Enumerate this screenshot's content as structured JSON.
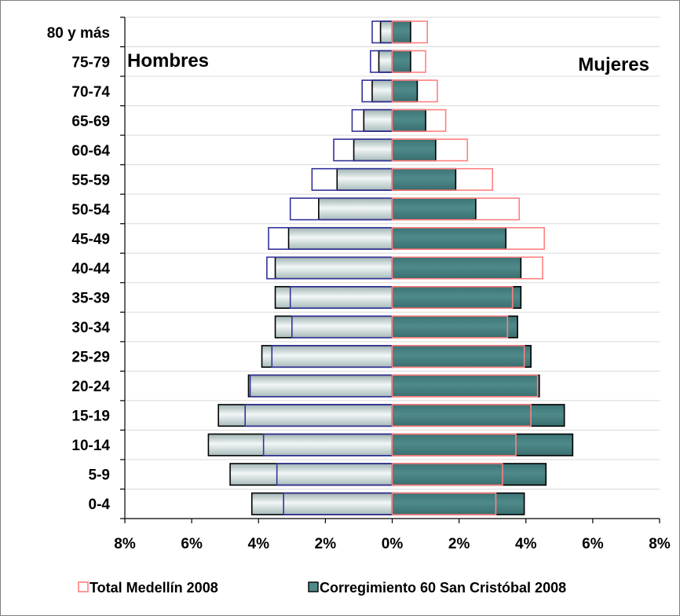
{
  "chart_data": {
    "type": "bar",
    "orientation": "horizontal",
    "layout": "population-pyramid",
    "categories": [
      "0-4",
      "5-9",
      "10-14",
      "15-19",
      "20-24",
      "25-29",
      "30-34",
      "35-39",
      "40-44",
      "45-49",
      "50-54",
      "55-59",
      "60-64",
      "65-69",
      "70-74",
      "75-79",
      "80 y más"
    ],
    "series": [
      {
        "name": "Corregimiento 60 San Cristóbal 2008",
        "style": "filled",
        "color_men": "#c8d6d6",
        "color_women": "#4f8a8b",
        "edge_color": "#000000",
        "men": [
          4.2,
          4.85,
          5.5,
          5.2,
          4.3,
          3.9,
          3.5,
          3.5,
          3.5,
          3.1,
          2.2,
          1.65,
          1.15,
          0.85,
          0.6,
          0.4,
          0.35
        ],
        "women": [
          3.95,
          4.6,
          5.4,
          5.15,
          4.4,
          4.15,
          3.75,
          3.85,
          3.85,
          3.4,
          2.5,
          1.9,
          1.3,
          1.0,
          0.75,
          0.55,
          0.55
        ]
      },
      {
        "name": "Total Medellín 2008",
        "style": "outline",
        "color_men": "#333399",
        "color_women": "#ff8080",
        "men": [
          3.25,
          3.45,
          3.85,
          4.4,
          4.25,
          3.6,
          3.0,
          3.05,
          3.75,
          3.7,
          3.05,
          2.4,
          1.75,
          1.2,
          0.9,
          0.65,
          0.6
        ],
        "women": [
          3.1,
          3.3,
          3.7,
          4.15,
          4.35,
          3.95,
          3.45,
          3.6,
          4.5,
          4.55,
          3.8,
          3.0,
          2.25,
          1.6,
          1.35,
          1.0,
          1.05
        ]
      }
    ],
    "side_labels": {
      "left": "Hombres",
      "right": "Mujeres"
    },
    "xlim": [
      -8,
      8
    ],
    "xticks": [
      -8,
      -6,
      -4,
      -2,
      0,
      2,
      4,
      6,
      8
    ],
    "xtick_labels": [
      "8%",
      "6%",
      "4%",
      "2%",
      "0%",
      "2%",
      "4%",
      "6%",
      "8%"
    ],
    "title": "",
    "xlabel": "",
    "ylabel": "",
    "grid": "horizontal",
    "legend_position": "bottom"
  }
}
